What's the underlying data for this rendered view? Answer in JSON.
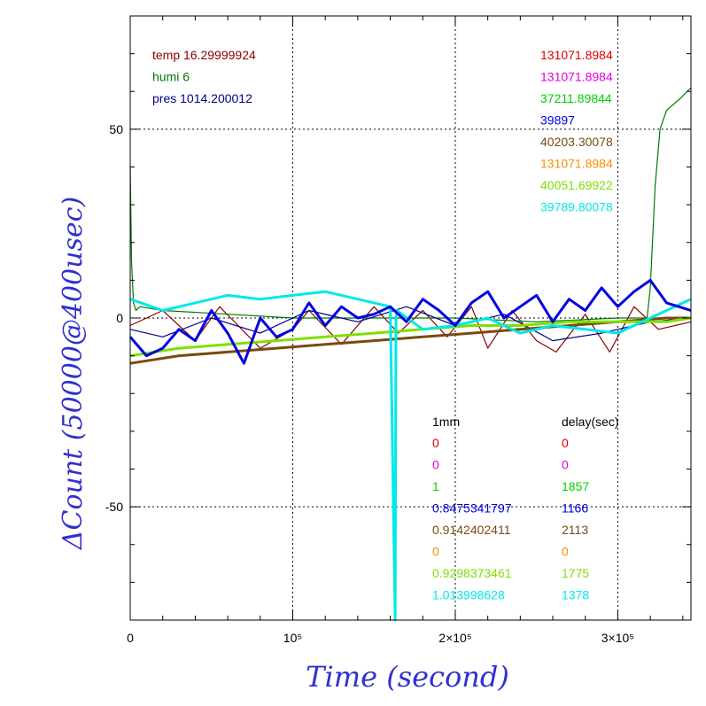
{
  "chart_data": {
    "type": "line",
    "xlabel": "Time (second)",
    "ylabel": "ΔCount (50000@400usec)",
    "xlim": [
      0,
      345000
    ],
    "ylim": [
      -80,
      80
    ],
    "grid": true,
    "x_ticks": [
      {
        "value": 0,
        "label": "0"
      },
      {
        "value": 100000,
        "label": "10⁵"
      },
      {
        "value": 200000,
        "label": "2×10⁵"
      },
      {
        "value": 300000,
        "label": "3×10⁵"
      }
    ],
    "y_ticks": [
      {
        "value": 50,
        "label": "50"
      },
      {
        "value": 0,
        "label": "0"
      },
      {
        "value": -50,
        "label": "-50"
      }
    ],
    "env_labels": [
      {
        "text": "temp 16.29999924",
        "color": "#8b0000"
      },
      {
        "text": "humi 6",
        "color": "#007a00"
      },
      {
        "text": "pres 1014.200012",
        "color": "#00008b"
      }
    ],
    "series_values": [
      {
        "text": "131071.8984",
        "color": "#e00000"
      },
      {
        "text": "131071.8984",
        "color": "#e000e0"
      },
      {
        "text": "37211.89844",
        "color": "#00d000"
      },
      {
        "text": "39897",
        "color": "#0000e0"
      },
      {
        "text": "40203.30078",
        "color": "#7a4a10"
      },
      {
        "text": "131071.8984",
        "color": "#ff8c00"
      },
      {
        "text": "40051.69922",
        "color": "#7fe000"
      },
      {
        "text": "39789.80078",
        "color": "#00e8e8"
      }
    ],
    "table_headers": {
      "col1": "1mm",
      "col2": "delay(sec)"
    },
    "table_rows": [
      {
        "c1": "0",
        "c2": "0",
        "color": "#e00000"
      },
      {
        "c1": "0",
        "c2": "0",
        "color": "#e000e0"
      },
      {
        "c1": "1",
        "c2": "1857",
        "color": "#00d000"
      },
      {
        "c1": "0.8475341797",
        "c2": "1166",
        "color": "#0000e0"
      },
      {
        "c1": "0.9142402411",
        "c2": "2113",
        "color": "#7a4a10"
      },
      {
        "c1": "0",
        "c2": "0",
        "color": "#ff8c00"
      },
      {
        "c1": "0.9298373461",
        "c2": "1775",
        "color": "#7fe000"
      },
      {
        "c1": "1.013998628",
        "c2": "1378",
        "color": "#00e8e8"
      }
    ],
    "series": [
      {
        "color": "#8b0000",
        "x": [
          0,
          20000,
          40000,
          55000,
          80000,
          100000,
          110000,
          130000,
          150000,
          165000,
          180000,
          195000,
          210000,
          220000,
          235000,
          250000,
          262000,
          280000,
          295000,
          310000,
          325000,
          345000
        ],
        "y": [
          -2,
          2,
          -6,
          3,
          -8,
          -3,
          2,
          -7,
          3,
          -4,
          2,
          -5,
          3,
          -8,
          2,
          -6,
          -9,
          1,
          -9,
          3,
          -3,
          -1
        ]
      },
      {
        "color": "#007a00",
        "x": [
          0,
          800,
          2000,
          3500,
          6000,
          20000,
          60000,
          100000,
          150000,
          200000,
          250000,
          300000,
          318000,
          320000,
          323000,
          326000,
          330000,
          338000,
          345000
        ],
        "y": [
          40,
          15,
          4,
          2,
          3,
          2,
          1,
          0,
          0,
          0,
          -1,
          0,
          0,
          8,
          35,
          50,
          55,
          58,
          61
        ]
      },
      {
        "color": "#00008b",
        "x": [
          0,
          20000,
          50000,
          80000,
          110000,
          140000,
          170000,
          200000,
          230000,
          260000,
          290000,
          320000,
          345000
        ],
        "y": [
          -3,
          -5,
          0,
          -4,
          2,
          -1,
          3,
          -2,
          1,
          -6,
          -4,
          -1,
          0
        ]
      },
      {
        "color": "#7a4a10",
        "x": [
          0,
          30000,
          60000,
          90000,
          120000,
          150000,
          180000,
          210000,
          240000,
          270000,
          300000,
          330000,
          345000
        ],
        "y": [
          -12,
          -10,
          -9,
          -8,
          -7,
          -6,
          -5,
          -4,
          -3,
          -2,
          -1,
          0,
          0
        ]
      },
      {
        "color": "#7fe000",
        "x": [
          0,
          30000,
          60000,
          90000,
          120000,
          150000,
          180000,
          210000,
          240000,
          270000,
          300000,
          330000,
          345000
        ],
        "y": [
          -10,
          -8,
          -7,
          -6,
          -5,
          -4,
          -3,
          -2,
          -2,
          -1,
          -1,
          -1,
          0
        ]
      },
      {
        "color": "#00e8e8",
        "x": [
          0,
          20000,
          40000,
          60000,
          80000,
          100000,
          120000,
          140000,
          160000,
          163000,
          163500,
          164000,
          180000,
          200000,
          220000,
          240000,
          260000,
          280000,
          300000,
          320000,
          345000
        ],
        "y": [
          5,
          2,
          4,
          6,
          5,
          6,
          7,
          5,
          3,
          -80,
          0,
          2,
          -3,
          -2,
          0,
          -4,
          -2,
          -3,
          -4,
          0,
          5
        ]
      },
      {
        "color": "#0000e0",
        "x": [
          0,
          10000,
          20000,
          30000,
          40000,
          50000,
          60000,
          70000,
          80000,
          90000,
          100000,
          110000,
          120000,
          130000,
          140000,
          150000,
          160000,
          170000,
          180000,
          190000,
          200000,
          210000,
          220000,
          230000,
          240000,
          250000,
          260000,
          270000,
          280000,
          290000,
          300000,
          310000,
          320000,
          330000,
          345000
        ],
        "y": [
          -5,
          -10,
          -8,
          -3,
          -6,
          2,
          -4,
          -12,
          0,
          -5,
          -3,
          4,
          -2,
          3,
          0,
          1,
          3,
          -1,
          5,
          2,
          -2,
          4,
          7,
          0,
          3,
          6,
          -1,
          5,
          2,
          8,
          3,
          7,
          10,
          4,
          2
        ]
      }
    ]
  }
}
